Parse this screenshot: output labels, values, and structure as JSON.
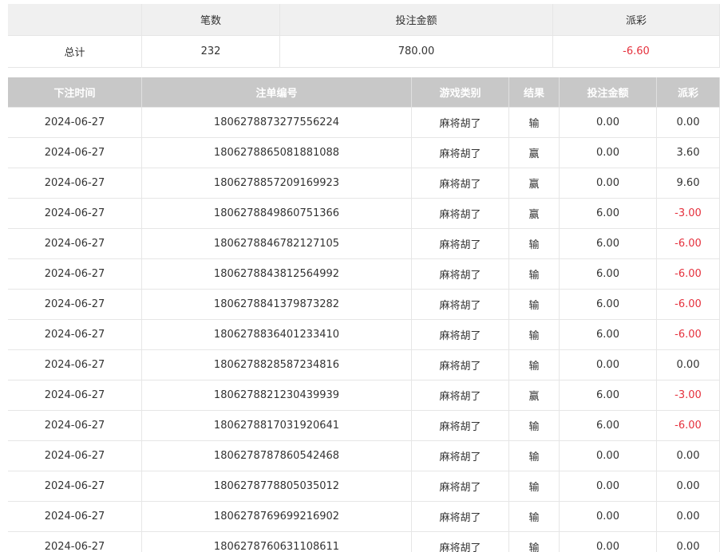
{
  "summary": {
    "headers": [
      "笔数",
      "投注金额",
      "派彩"
    ],
    "row_label": "总计",
    "values": [
      "232",
      "780.00",
      "-6.60"
    ]
  },
  "records": {
    "headers": [
      "下注时间",
      "注单编号",
      "游戏类别",
      "结果",
      "投注金额",
      "派彩"
    ],
    "rows": [
      [
        "2024-06-27",
        "1806278873277556224",
        "麻将胡了",
        "输",
        "0.00",
        "0.00"
      ],
      [
        "2024-06-27",
        "1806278865081881088",
        "麻将胡了",
        "赢",
        "0.00",
        "3.60"
      ],
      [
        "2024-06-27",
        "1806278857209169923",
        "麻将胡了",
        "赢",
        "0.00",
        "9.60"
      ],
      [
        "2024-06-27",
        "1806278849860751366",
        "麻将胡了",
        "赢",
        "6.00",
        "-3.00"
      ],
      [
        "2024-06-27",
        "1806278846782127105",
        "麻将胡了",
        "输",
        "6.00",
        "-6.00"
      ],
      [
        "2024-06-27",
        "1806278843812564992",
        "麻将胡了",
        "输",
        "6.00",
        "-6.00"
      ],
      [
        "2024-06-27",
        "1806278841379873282",
        "麻将胡了",
        "输",
        "6.00",
        "-6.00"
      ],
      [
        "2024-06-27",
        "1806278836401233410",
        "麻将胡了",
        "输",
        "6.00",
        "-6.00"
      ],
      [
        "2024-06-27",
        "1806278828587234816",
        "麻将胡了",
        "输",
        "0.00",
        "0.00"
      ],
      [
        "2024-06-27",
        "1806278821230439939",
        "麻将胡了",
        "赢",
        "6.00",
        "-3.00"
      ],
      [
        "2024-06-27",
        "1806278817031920641",
        "麻将胡了",
        "输",
        "6.00",
        "-6.00"
      ],
      [
        "2024-06-27",
        "1806278787860542468",
        "麻将胡了",
        "输",
        "0.00",
        "0.00"
      ],
      [
        "2024-06-27",
        "1806278778805035012",
        "麻将胡了",
        "输",
        "0.00",
        "0.00"
      ],
      [
        "2024-06-27",
        "1806278769699216902",
        "麻将胡了",
        "输",
        "0.00",
        "0.00"
      ],
      [
        "2024-06-27",
        "1806278760631108611",
        "麻将胡了",
        "输",
        "0.00",
        "0.00"
      ]
    ]
  }
}
